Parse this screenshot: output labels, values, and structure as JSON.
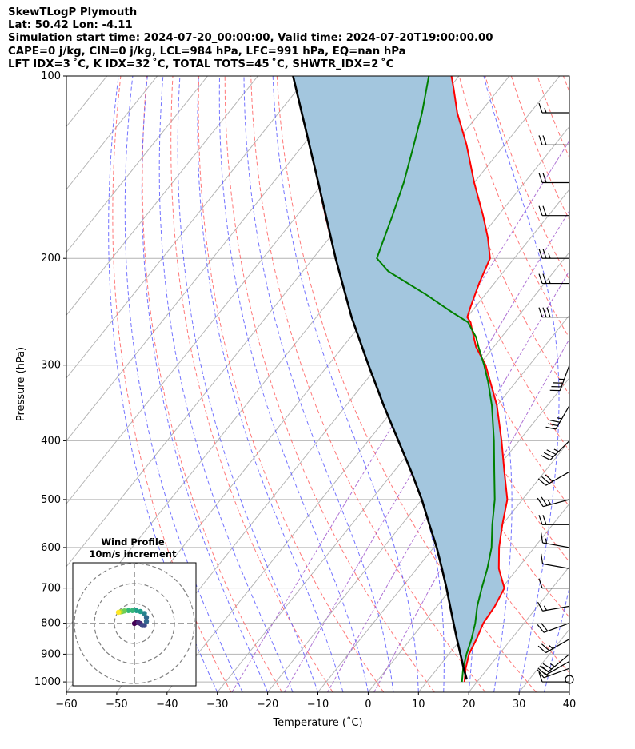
{
  "header": {
    "line1": "SkewTLogP Plymouth",
    "line2": "Lat: 50.42   Lon: -4.11",
    "line3": "Simulation start time: 2024-07-20_00:00:00, Valid time: 2024-07-20T19:00:00.00",
    "line4": "CAPE=0 j/kg, CIN=0 j/kg, LCL=984 hPa, LFC=991 hPa, EQ=nan hPa",
    "line5": "LFT IDX=3 ˚C, K IDX=32 ˚C, TOTAL TOTS=45 ˚C, SHWTR_IDX=2 ˚C"
  },
  "colors": {
    "temperature": "#ff0000",
    "dewpoint": "#008000",
    "parcel": "#000000",
    "cape_fill": "#a3c6de",
    "dry_adiabats": "#ff6060",
    "moist_adiabats": "#5a5aff",
    "mixing_ratio": "#9a4fc9",
    "isotherms": "#b4b4b4"
  },
  "chart_data": [
    {
      "type": "line",
      "subtype": "skew-T log-P",
      "xlabel": "Temperature (˚C)",
      "ylabel": "Pressure (hPa)",
      "xlim": [
        -60,
        40
      ],
      "ylim": [
        1040,
        100
      ],
      "y_scale": "log",
      "x_ticks": [
        "−60",
        "−50",
        "−40",
        "−30",
        "−20",
        "−10",
        "0",
        "10",
        "20",
        "30",
        "40"
      ],
      "y_ticks": [
        "100",
        "200",
        "300",
        "400",
        "500",
        "600",
        "700",
        "800",
        "900",
        "1000"
      ],
      "grid": true,
      "series": [
        {
          "role": "temperature",
          "p": [
            1000,
            950,
            900,
            850,
            800,
            750,
            700,
            650,
            600,
            550,
            500,
            450,
            400,
            350,
            300,
            280,
            260,
            255,
            250,
            240,
            220,
            200,
            185,
            170,
            150,
            130,
            115,
            105,
            100
          ],
          "t": [
            17.5,
            15.6,
            14.0,
            13.1,
            11.9,
            11.5,
            10.5,
            6.3,
            3.0,
            0.0,
            -3.0,
            -8.0,
            -13.5,
            -20.0,
            -28.7,
            -33.5,
            -37.5,
            -38.5,
            -40.0,
            -41.0,
            -43.0,
            -44.8,
            -48.5,
            -53.0,
            -60.0,
            -67.5,
            -74.5,
            -79.0,
            -81.5
          ]
        },
        {
          "role": "dewpoint",
          "p": [
            1000,
            950,
            900,
            850,
            800,
            750,
            700,
            650,
            600,
            550,
            500,
            450,
            400,
            350,
            320,
            300,
            280,
            270,
            255,
            245,
            230,
            210,
            200,
            190,
            170,
            150,
            130,
            115,
            100
          ],
          "t": [
            17.0,
            15.1,
            13.5,
            12.1,
            10.3,
            8.0,
            6.0,
            4.0,
            1.5,
            -2.0,
            -5.5,
            -10.0,
            -15.0,
            -21.0,
            -25.5,
            -29.0,
            -33.0,
            -35.0,
            -39.0,
            -44.0,
            -51.5,
            -63.0,
            -67.3,
            -68.5,
            -71.0,
            -74.0,
            -78.0,
            -81.5,
            -86.0
          ]
        },
        {
          "role": "parcel",
          "p": [
            991,
            950,
            900,
            850,
            800,
            750,
            700,
            650,
            600,
            550,
            500,
            450,
            400,
            350,
            300,
            250,
            200,
            150,
            100
          ],
          "t": [
            17.6,
            15.2,
            12.3,
            9.2,
            6.0,
            2.6,
            -1.0,
            -5.0,
            -9.4,
            -14.5,
            -20.0,
            -26.5,
            -34.0,
            -42.5,
            -52.0,
            -63.0,
            -75.5,
            -91.0,
            -113.0
          ]
        }
      ],
      "wind_barbs": {
        "p": [
          1000,
          950,
          925,
          900,
          850,
          800,
          750,
          700,
          650,
          600,
          550,
          500,
          450,
          400,
          350,
          300,
          250,
          220,
          200,
          170,
          150,
          130,
          115
        ],
        "speed_kt": [
          10,
          15,
          20,
          25,
          25,
          20,
          15,
          10,
          10,
          15,
          20,
          25,
          30,
          35,
          35,
          35,
          30,
          25,
          25,
          20,
          20,
          20,
          15
        ],
        "dir_deg": [
          270,
          250,
          240,
          230,
          240,
          250,
          260,
          270,
          280,
          280,
          270,
          255,
          240,
          225,
          210,
          200,
          270,
          270,
          270,
          270,
          270,
          270,
          270
        ],
        "calm_marker_at": "1000"
      }
    },
    {
      "type": "scatter",
      "subtype": "hodograph",
      "title": "Wind Profile",
      "subtitle": "10m/s increment",
      "ring_step": 10,
      "rings": [
        10,
        20,
        30
      ],
      "u": [
        0,
        1,
        2,
        3,
        4,
        5,
        6,
        6,
        5,
        3,
        1,
        -1,
        -3,
        -5,
        -6,
        -7,
        -8
      ],
      "v": [
        0,
        0.5,
        0.5,
        0,
        -1,
        -1,
        1,
        3,
        5,
        6,
        6.5,
        6.5,
        6.5,
        6.3,
        6.0,
        5.8,
        5.6
      ],
      "colormap": "viridis"
    }
  ]
}
